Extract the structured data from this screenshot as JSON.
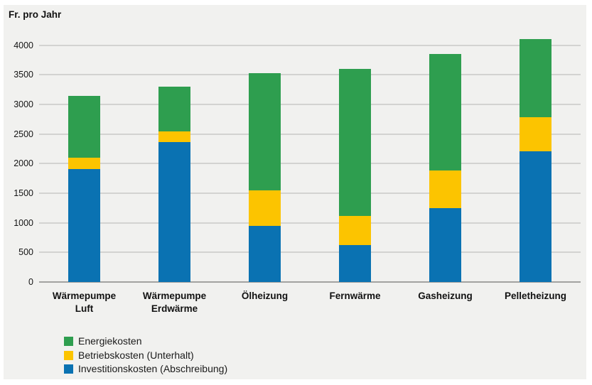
{
  "title": "Fr. pro Jahr",
  "colors": {
    "panel_background": "#f1f1ef",
    "gridline": "#d3d3d1",
    "axis_line": "#a2a2a0",
    "series_blue": "#0a72b2",
    "series_yellow": "#fcc400",
    "series_green": "#2e9e4f",
    "text": "#111111"
  },
  "chart_data": {
    "type": "bar",
    "stacked": true,
    "title": "Fr. pro Jahr",
    "xlabel": "",
    "ylabel": "Fr. pro Jahr",
    "ylim": [
      0,
      4200
    ],
    "yticks": [
      0,
      500,
      1000,
      1500,
      2000,
      2500,
      3000,
      3500,
      4000
    ],
    "grid": true,
    "legend_position": "bottom-left",
    "categories": [
      "Wärmepumpe Luft",
      "Wärmepumpe Erdwärme",
      "Ölheizung",
      "Fernwärme",
      "Gasheizung",
      "Pelletheizung"
    ],
    "category_lines": [
      [
        "Wärmepumpe",
        "Luft"
      ],
      [
        "Wärmepumpe",
        "Erdwärme"
      ],
      [
        "Ölheizung"
      ],
      [
        "Fernwärme"
      ],
      [
        "Gasheizung"
      ],
      [
        "Pelletheizung"
      ]
    ],
    "series": [
      {
        "name": "Investitionskosten (Abschreibung)",
        "color": "#0a72b2",
        "values": [
          1910,
          2370,
          950,
          630,
          1250,
          2210
        ]
      },
      {
        "name": "Betriebskosten (Unterhalt)",
        "color": "#fcc400",
        "values": [
          190,
          180,
          600,
          490,
          630,
          570
        ]
      },
      {
        "name": "Energiekosten",
        "color": "#2e9e4f",
        "values": [
          1050,
          750,
          1980,
          2480,
          1970,
          1320
        ]
      }
    ],
    "totals": [
      3150,
      3300,
      3530,
      3600,
      3850,
      4100
    ],
    "legend": [
      {
        "label": "Energiekosten",
        "color": "#2e9e4f"
      },
      {
        "label": "Betriebskosten (Unterhalt)",
        "color": "#fcc400"
      },
      {
        "label": "Investitionskosten (Abschreibung)",
        "color": "#0a72b2"
      }
    ]
  }
}
